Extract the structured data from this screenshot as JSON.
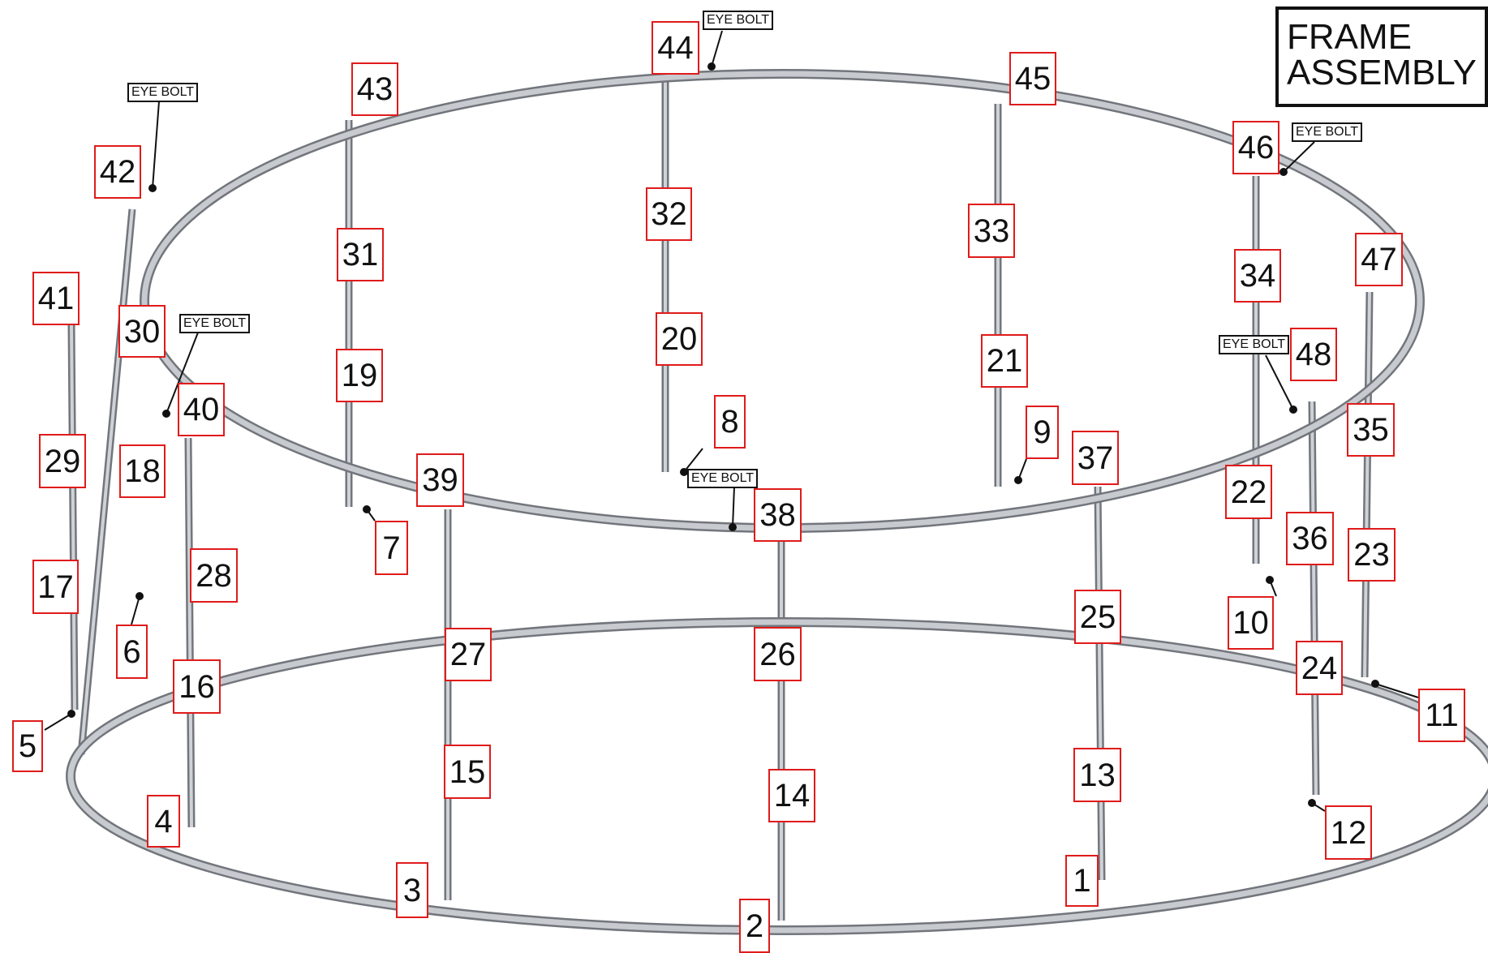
{
  "title": {
    "line1": "FRAME",
    "line2": "ASSEMBLY"
  },
  "eye_bolt_text": "EYE BOLT",
  "eye_bolts": [
    "EYE BOLT",
    "EYE BOLT",
    "EYE BOLT",
    "EYE BOLT",
    "EYE BOLT",
    "EYE BOLT"
  ],
  "labels": [
    "1",
    "2",
    "3",
    "4",
    "5",
    "6",
    "7",
    "8",
    "9",
    "10",
    "11",
    "12",
    "13",
    "14",
    "15",
    "16",
    "17",
    "18",
    "19",
    "20",
    "21",
    "22",
    "23",
    "24",
    "25",
    "26",
    "27",
    "28",
    "29",
    "30",
    "31",
    "32",
    "33",
    "34",
    "35",
    "36",
    "37",
    "38",
    "39",
    "40",
    "41",
    "42",
    "43",
    "44",
    "45",
    "46",
    "47",
    "48"
  ],
  "colors": {
    "label_border": "#e01b1b",
    "tube": "#b9bcc1",
    "tube_edge": "#7d8086"
  }
}
